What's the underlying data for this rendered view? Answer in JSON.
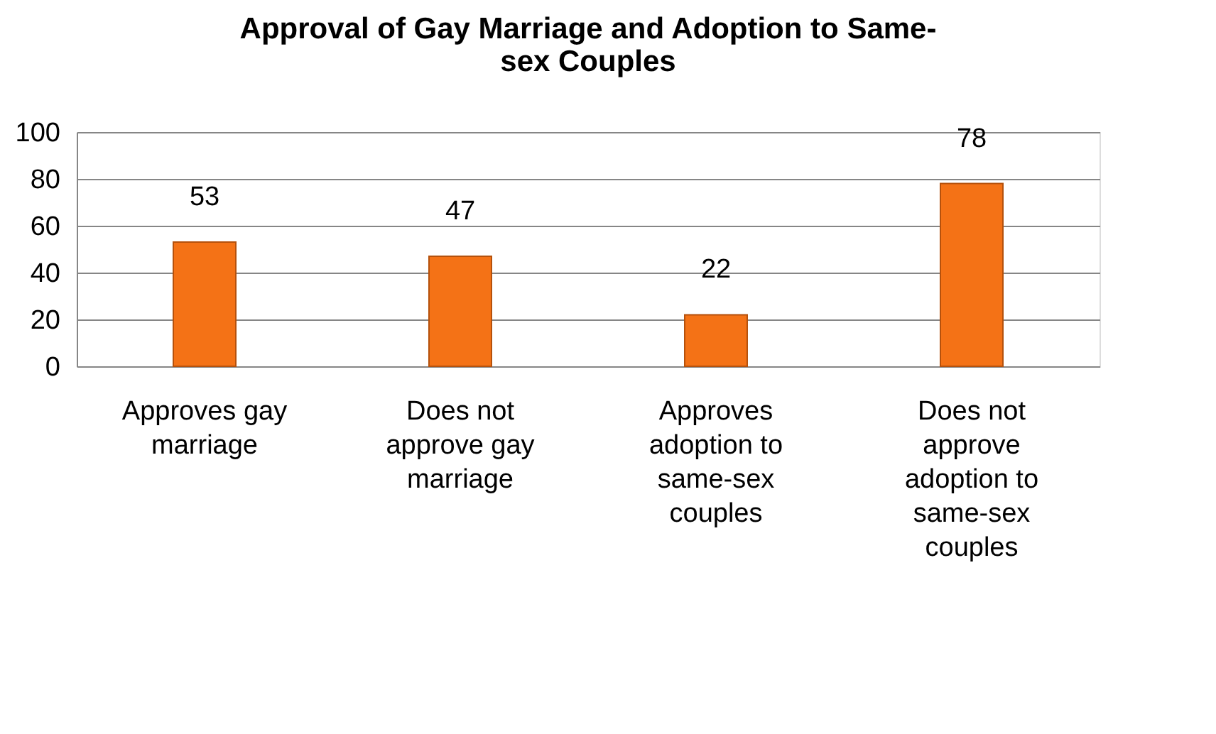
{
  "chart_data": {
    "type": "bar",
    "title": "Approval of Gay Marriage and Adoption to Same-sex Couples",
    "categories": [
      "Approves gay marriage",
      "Does not approve gay marriage",
      "Approves adoption to same-sex couples",
      "Does not approve adoption to same-sex couples"
    ],
    "values": [
      53,
      47,
      22,
      78
    ],
    "color": "#f47216",
    "ylim": [
      0,
      100
    ],
    "yticks": [
      0,
      20,
      40,
      60,
      80,
      100
    ],
    "grid": "y",
    "data_labels": true
  }
}
